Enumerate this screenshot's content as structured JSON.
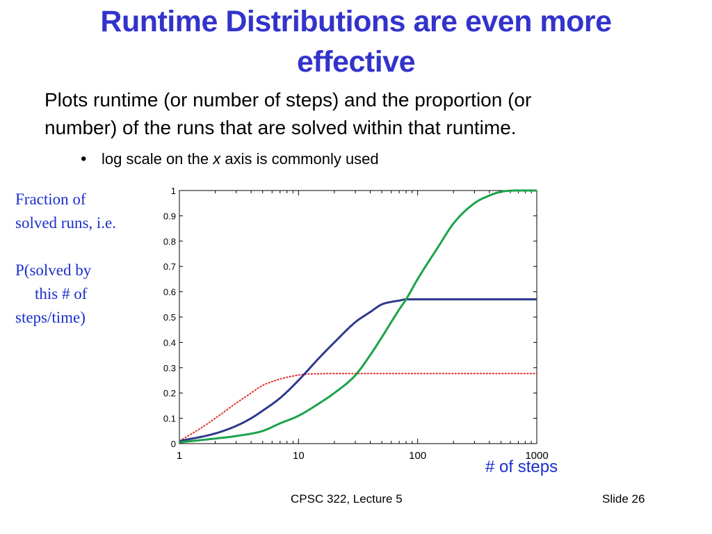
{
  "slide": {
    "title_lines": [
      "Runtime Distributions are even more",
      "effective"
    ],
    "lead_lines": [
      "Plots runtime (or number of steps) and the proportion (or",
      "number) of the runs that are solved within that runtime."
    ],
    "bullet": {
      "before": "log scale on the ",
      "italic": "x",
      "after": " axis is commonly used"
    },
    "ylabel_lines": [
      "Fraction of",
      "solved runs, i.e.",
      "",
      "P(solved by",
      "this # of",
      "steps/time)"
    ],
    "xlabel": "# of steps",
    "footer_left": "CPSC 322, Lecture 5",
    "footer_right": "Slide 26"
  },
  "chart_data": {
    "type": "line",
    "xscale": "log",
    "xlim": [
      1,
      1000
    ],
    "ylim": [
      0,
      1
    ],
    "grid": false,
    "x_ticks": [
      1,
      10,
      100,
      1000
    ],
    "x_tick_labels": [
      "1",
      "10",
      "100",
      "1000"
    ],
    "y_ticks": [
      0,
      0.1,
      0.2,
      0.3,
      0.4,
      0.5,
      0.6,
      0.7,
      0.8,
      0.9,
      1
    ],
    "y_tick_labels": [
      "0",
      "0.1",
      "0.2",
      "0.3",
      "0.4",
      "0.5",
      "0.6",
      "0.7",
      "0.8",
      "0.9",
      "1"
    ],
    "series": [
      {
        "color": "#e03030",
        "x": [
          1,
          1.5,
          2,
          3,
          4,
          5,
          6,
          7,
          8,
          9,
          10,
          12,
          15,
          20,
          50,
          100,
          200,
          500,
          1000
        ],
        "y": [
          0.01,
          0.06,
          0.1,
          0.16,
          0.2,
          0.23,
          0.245,
          0.255,
          0.262,
          0.267,
          0.271,
          0.275,
          0.276,
          0.277,
          0.277,
          0.277,
          0.277,
          0.277,
          0.277
        ]
      },
      {
        "color": "#2e3a8c",
        "x": [
          1,
          2,
          3,
          4,
          5,
          7,
          10,
          15,
          20,
          30,
          40,
          50,
          60,
          70,
          80,
          90,
          100,
          200,
          500,
          1000
        ],
        "y": [
          0.01,
          0.04,
          0.07,
          0.1,
          0.13,
          0.18,
          0.25,
          0.34,
          0.4,
          0.48,
          0.52,
          0.55,
          0.56,
          0.565,
          0.57,
          0.57,
          0.57,
          0.57,
          0.57,
          0.57
        ]
      },
      {
        "color": "#1aa34a",
        "x": [
          1,
          2,
          3,
          5,
          7,
          10,
          15,
          20,
          30,
          40,
          50,
          60,
          70,
          80,
          100,
          150,
          200,
          300,
          400,
          500,
          700,
          1000
        ],
        "y": [
          0.005,
          0.02,
          0.03,
          0.05,
          0.08,
          0.11,
          0.16,
          0.2,
          0.27,
          0.35,
          0.42,
          0.48,
          0.53,
          0.57,
          0.65,
          0.78,
          0.87,
          0.95,
          0.98,
          0.995,
          1.0,
          1.0
        ]
      }
    ]
  }
}
